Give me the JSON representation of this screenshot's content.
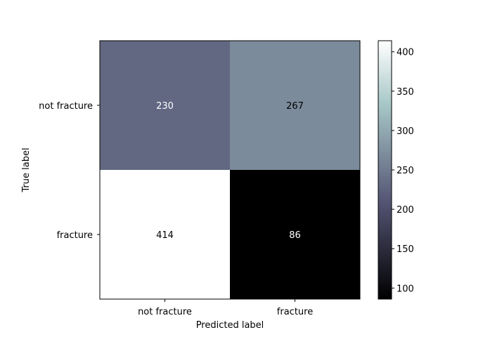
{
  "chart_data": {
    "type": "heatmap",
    "title": "",
    "xlabel": "Predicted label",
    "ylabel": "True label",
    "x_categories": [
      "not fracture",
      "fracture"
    ],
    "y_categories": [
      "not fracture",
      "fracture"
    ],
    "values": [
      [
        230,
        267
      ],
      [
        414,
        86
      ]
    ],
    "colormap": "bone",
    "colorbar": {
      "range": [
        86,
        414
      ],
      "ticks": [
        100,
        150,
        200,
        250,
        300,
        350,
        400
      ],
      "tick_labels": [
        "100",
        "150",
        "200",
        "250",
        "300",
        "350",
        "400"
      ]
    },
    "cell_text_colors": {
      "on_dark": "#ffffff",
      "on_light": "#000000"
    },
    "grid": false
  }
}
